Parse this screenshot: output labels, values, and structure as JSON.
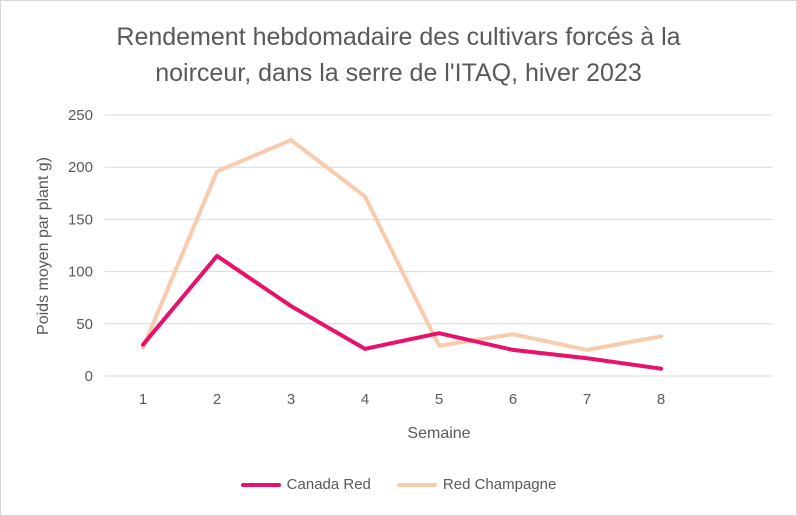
{
  "chart_data": {
    "type": "line",
    "title_lines": [
      "Rendement hebdomadaire des cultivars forcés à la",
      "noirceur, dans la serre de l'ITAQ, hiver 2023"
    ],
    "xlabel": "Semaine",
    "ylabel": "Poids moyen par plant g)",
    "categories": [
      "1",
      "2",
      "3",
      "4",
      "5",
      "6",
      "7",
      "8"
    ],
    "ylim": [
      0,
      250
    ],
    "yticks": [
      0,
      50,
      100,
      150,
      200,
      250
    ],
    "grid": true,
    "legend_position": "bottom",
    "series": [
      {
        "name": "Canada Red",
        "color": "#e8116b",
        "values": [
          30,
          115,
          67,
          26,
          41,
          25,
          17,
          7
        ]
      },
      {
        "name": "Red Champagne",
        "color": "#f8cbad",
        "values": [
          27,
          196,
          226,
          172,
          29,
          40,
          25,
          38
        ]
      }
    ]
  }
}
